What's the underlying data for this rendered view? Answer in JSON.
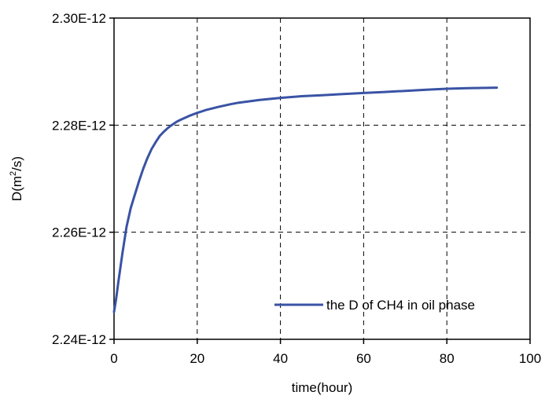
{
  "chart_data": {
    "type": "line",
    "xlabel": "time(hour)",
    "ylabel_prefix": "D(m",
    "ylabel_sup": "2",
    "ylabel_suffix": "/s)",
    "xlim": [
      0,
      100
    ],
    "ylim": [
      2.24e-12,
      2.3e-12
    ],
    "x_ticks": [
      0,
      20,
      40,
      60,
      80,
      100
    ],
    "x_tick_labels": [
      "0",
      "20",
      "40",
      "60",
      "80",
      "100"
    ],
    "y_ticks": [
      2.24e-12,
      2.26e-12,
      2.28e-12,
      2.3e-12
    ],
    "y_tick_labels": [
      "2.24E-12",
      "2.26E-12",
      "2.28E-12",
      "2.30E-12"
    ],
    "grid": "dashed",
    "legend_position": "bottom-right",
    "series": [
      {
        "name": "the D of CH4 in oil phase",
        "color": "#3953a4",
        "x": [
          0,
          0.5,
          1,
          2,
          3,
          4,
          5,
          6,
          7,
          8,
          9,
          10,
          11,
          12,
          13,
          14,
          15,
          16,
          18,
          20,
          22,
          25,
          28,
          30,
          35,
          40,
          45,
          50,
          55,
          60,
          65,
          70,
          75,
          80,
          85,
          92
        ],
        "y": [
          2.2451e-12,
          2.2475e-12,
          2.2505e-12,
          2.256e-12,
          2.261e-12,
          2.2645e-12,
          2.267e-12,
          2.2695e-12,
          2.2718e-12,
          2.2738e-12,
          2.2755e-12,
          2.2768e-12,
          2.278e-12,
          2.2788e-12,
          2.2795e-12,
          2.2801e-12,
          2.2806e-12,
          2.281e-12,
          2.2817e-12,
          2.2823e-12,
          2.2828e-12,
          2.2834e-12,
          2.2839e-12,
          2.2842e-12,
          2.2847e-12,
          2.2851e-12,
          2.2854e-12,
          2.2856e-12,
          2.2858e-12,
          2.286e-12,
          2.2862e-12,
          2.2864e-12,
          2.2866e-12,
          2.2868e-12,
          2.2869e-12,
          2.287e-12
        ]
      }
    ]
  }
}
